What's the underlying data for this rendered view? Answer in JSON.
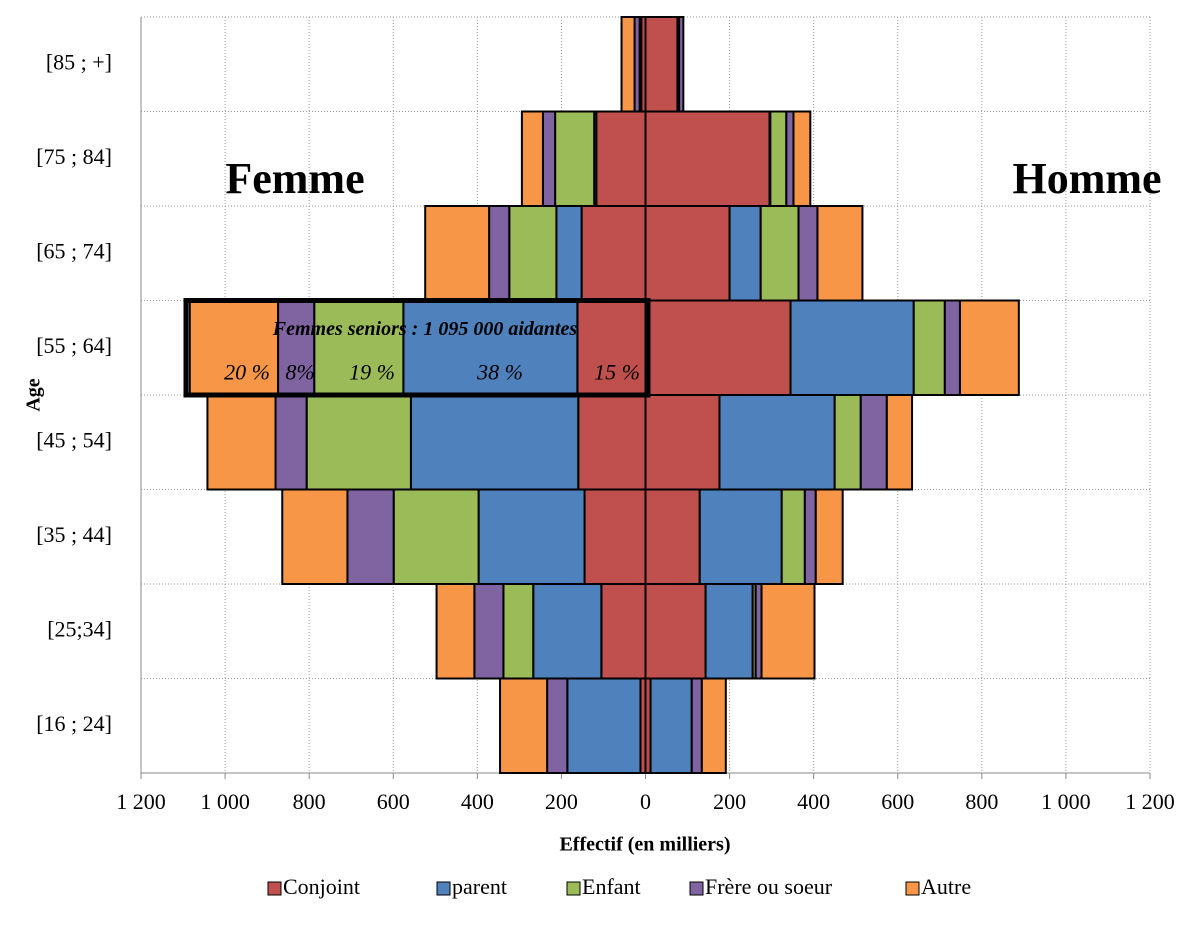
{
  "chart_data": {
    "type": "pyramid",
    "xlabel": "Effectif (en milliers)",
    "ylabel": "Age",
    "categories": [
      "[16 ; 24]",
      "[25;34]",
      "[35 ; 44]",
      "[45 ; 54]",
      "[55 ; 64]",
      "[65 ; 74]",
      "[75 ; 84]",
      "[85 ; +]"
    ],
    "series": [
      {
        "name": "Conjoint",
        "color": "#c0504d",
        "female_values": [
          -12,
          -105,
          -145,
          -160,
          -162,
          -152,
          -117,
          -10
        ],
        "male_values": [
          12,
          143,
          129,
          176,
          345,
          200,
          295,
          76
        ]
      },
      {
        "name": "parent",
        "color": "#4f81bd",
        "female_values": [
          -174,
          -162,
          -252,
          -398,
          -414,
          -60,
          -5,
          -2
        ],
        "male_values": [
          98,
          112,
          195,
          274,
          293,
          74,
          2,
          2
        ]
      },
      {
        "name": "Enfant",
        "color": "#9bbb59",
        "female_values": [
          0,
          -71,
          -202,
          -248,
          -212,
          -112,
          -93,
          -2
        ],
        "male_values": [
          0,
          7,
          55,
          62,
          74,
          90,
          38,
          2
        ]
      },
      {
        "name": "Frère ou soeur",
        "color": "#8064a2",
        "female_values": [
          -48,
          -69,
          -110,
          -74,
          -86,
          -48,
          -29,
          -12
        ],
        "male_values": [
          24,
          14,
          26,
          62,
          36,
          45,
          17,
          10
        ]
      },
      {
        "name": "Autre",
        "color": "#f79646",
        "female_values": [
          -112,
          -90,
          -155,
          -162,
          -210,
          -152,
          -50,
          -31
        ],
        "male_values": [
          57,
          126,
          64,
          60,
          140,
          107,
          40,
          0
        ]
      }
    ],
    "xlim": [
      -1200,
      1200
    ],
    "xticks": [
      {
        "value": -1200,
        "label": "1 200"
      },
      {
        "value": -1000,
        "label": "1 000"
      },
      {
        "value": -800,
        "label": "800"
      },
      {
        "value": -600,
        "label": "600"
      },
      {
        "value": -400,
        "label": "400"
      },
      {
        "value": -200,
        "label": "200"
      },
      0,
      200,
      400,
      600,
      800,
      {
        "value": 1000,
        "label": "1 000"
      },
      {
        "value": 1200,
        "label": "1 200"
      }
    ],
    "grid": true,
    "annotations": {
      "left": "Femme",
      "right": "Homme",
      "box_title": "Femmes seniors : 1 095 000 aidantes",
      "box_shares": [
        "20 %",
        "8%",
        "19 %",
        "38 %",
        "15 %"
      ]
    }
  }
}
